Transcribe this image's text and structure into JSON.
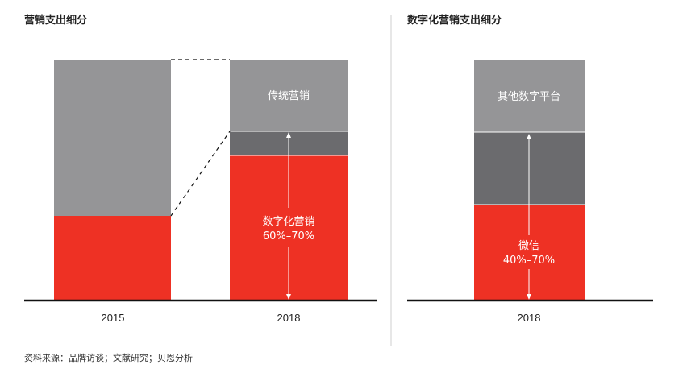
{
  "source": "资料来源：品牌访谈；文献研究；贝恩分析",
  "colors": {
    "red": "#ee3124",
    "light_gray": "#959597",
    "dark_gray": "#6b6b6e",
    "axis": "#111111"
  },
  "chart_data": [
    {
      "type": "bar",
      "title": "营销支出细分",
      "categories": [
        "2015",
        "2018"
      ],
      "series": [
        {
          "name": "",
          "values": [
            100,
            100
          ]
        }
      ],
      "segments": {
        "2015": [
          {
            "name": "",
            "share": 0.34
          },
          {
            "name": "",
            "share": 0.66
          }
        ],
        "2018": [
          {
            "name": "数字化营销",
            "range_label": "60%–70%",
            "share": 0.6
          },
          {
            "name": "",
            "share": 0.1
          },
          {
            "name": "传统营销",
            "share": 0.3
          }
        ]
      },
      "annotations": [
        {
          "label": "数字化营销",
          "value": "60%–70%"
        }
      ]
    },
    {
      "type": "bar",
      "title": "数字化营销支出细分",
      "categories": [
        "2018"
      ],
      "segments": {
        "2018": [
          {
            "name": "微信",
            "range_label": "40%–70%",
            "share": 0.4
          },
          {
            "name": "",
            "share": 0.3
          },
          {
            "name": "其他数字平台",
            "share": 0.3
          }
        ]
      },
      "annotations": [
        {
          "label": "微信",
          "value": "40%–70%"
        }
      ]
    }
  ]
}
